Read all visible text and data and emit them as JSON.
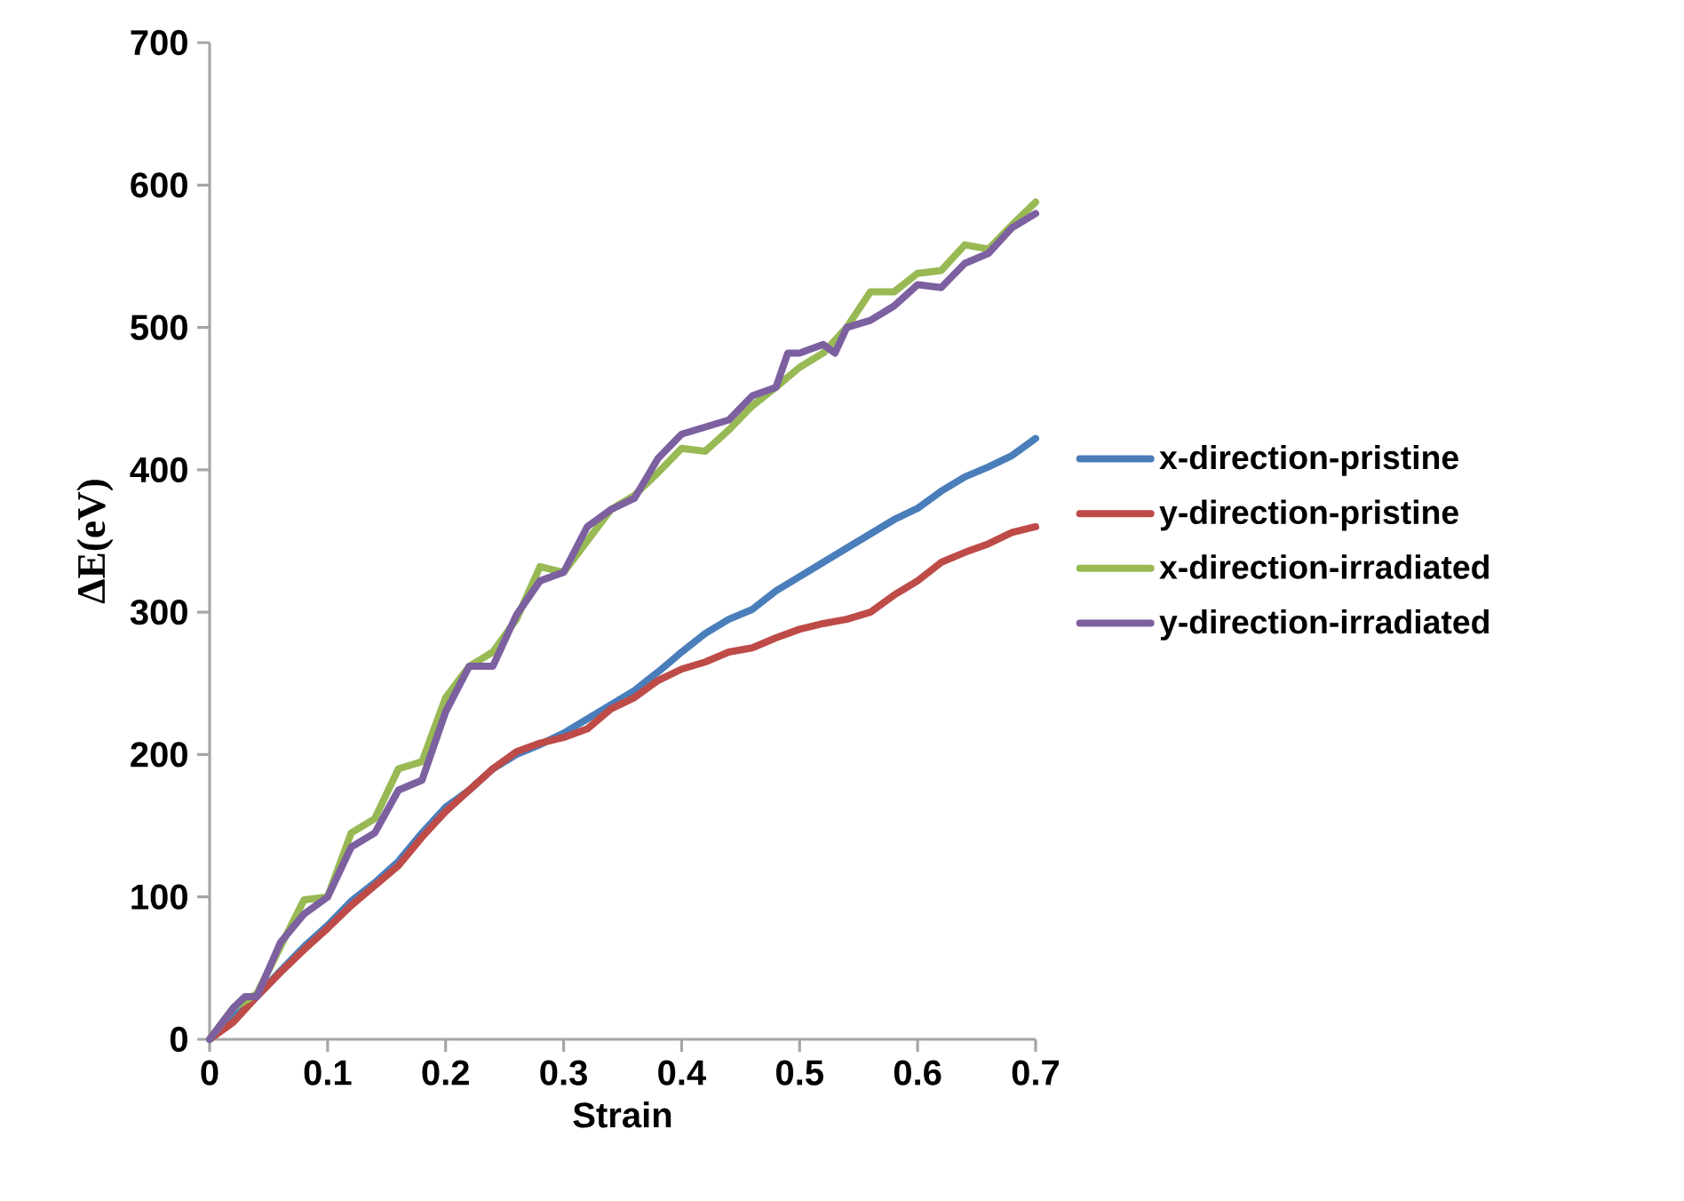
{
  "chart_data": {
    "type": "line",
    "xlabel": "Strain",
    "ylabel": "ΔE(eV)",
    "xlim": [
      0,
      0.7
    ],
    "ylim": [
      0,
      700
    ],
    "xticks": [
      0,
      0.1,
      0.2,
      0.3,
      0.4,
      0.5,
      0.6,
      0.7
    ],
    "yticks": [
      0,
      100,
      200,
      300,
      400,
      500,
      600,
      700
    ],
    "grid": false,
    "legend": "right",
    "marker": "none",
    "line_style": "solid",
    "series": [
      {
        "name": "x-direction-pristine",
        "color": "#4a7ebb",
        "x": [
          0,
          0.02,
          0.04,
          0.06,
          0.08,
          0.1,
          0.12,
          0.14,
          0.16,
          0.18,
          0.2,
          0.22,
          0.24,
          0.26,
          0.28,
          0.3,
          0.32,
          0.34,
          0.36,
          0.38,
          0.4,
          0.42,
          0.44,
          0.46,
          0.48,
          0.5,
          0.52,
          0.54,
          0.56,
          0.58,
          0.6,
          0.62,
          0.64,
          0.66,
          0.68,
          0.7
        ],
        "values": [
          0,
          15,
          30,
          48,
          65,
          80,
          97,
          110,
          125,
          145,
          163,
          175,
          190,
          200,
          207,
          215,
          225,
          235,
          245,
          258,
          272,
          285,
          295,
          302,
          315,
          325,
          335,
          345,
          355,
          365,
          373,
          385,
          395,
          402,
          410,
          422
        ]
      },
      {
        "name": "y-direction-pristine",
        "color": "#be4b48",
        "x": [
          0,
          0.02,
          0.04,
          0.06,
          0.08,
          0.1,
          0.12,
          0.14,
          0.16,
          0.18,
          0.2,
          0.22,
          0.24,
          0.26,
          0.28,
          0.3,
          0.32,
          0.34,
          0.36,
          0.38,
          0.4,
          0.42,
          0.44,
          0.46,
          0.48,
          0.5,
          0.52,
          0.54,
          0.56,
          0.58,
          0.6,
          0.62,
          0.64,
          0.66,
          0.68,
          0.7
        ],
        "values": [
          0,
          12,
          30,
          47,
          63,
          78,
          94,
          108,
          122,
          142,
          160,
          175,
          190,
          202,
          208,
          212,
          218,
          232,
          240,
          252,
          260,
          265,
          272,
          275,
          282,
          288,
          292,
          295,
          300,
          312,
          322,
          335,
          342,
          348,
          356,
          360
        ]
      },
      {
        "name": "x-direction-irradiated",
        "color": "#98b954",
        "x": [
          0,
          0.02,
          0.04,
          0.06,
          0.08,
          0.1,
          0.12,
          0.14,
          0.16,
          0.18,
          0.2,
          0.22,
          0.24,
          0.26,
          0.28,
          0.3,
          0.32,
          0.34,
          0.36,
          0.38,
          0.4,
          0.42,
          0.44,
          0.46,
          0.48,
          0.5,
          0.52,
          0.54,
          0.56,
          0.58,
          0.6,
          0.62,
          0.64,
          0.66,
          0.68,
          0.7
        ],
        "values": [
          0,
          22,
          32,
          65,
          98,
          100,
          145,
          155,
          190,
          195,
          240,
          262,
          272,
          295,
          332,
          328,
          350,
          372,
          382,
          398,
          415,
          413,
          428,
          445,
          458,
          472,
          482,
          500,
          525,
          525,
          538,
          540,
          558,
          555,
          572,
          588
        ]
      },
      {
        "name": "y-direction-irradiated",
        "color": "#7d60a0",
        "x": [
          0,
          0.02,
          0.03,
          0.04,
          0.06,
          0.08,
          0.1,
          0.12,
          0.14,
          0.16,
          0.18,
          0.2,
          0.22,
          0.24,
          0.26,
          0.28,
          0.3,
          0.32,
          0.34,
          0.36,
          0.38,
          0.4,
          0.42,
          0.44,
          0.46,
          0.48,
          0.49,
          0.5,
          0.52,
          0.53,
          0.54,
          0.56,
          0.58,
          0.6,
          0.62,
          0.64,
          0.66,
          0.68,
          0.7
        ],
        "values": [
          0,
          22,
          30,
          30,
          68,
          88,
          100,
          135,
          145,
          175,
          182,
          230,
          262,
          262,
          298,
          322,
          328,
          360,
          372,
          380,
          408,
          425,
          430,
          435,
          452,
          458,
          482,
          482,
          488,
          482,
          500,
          505,
          515,
          530,
          528,
          545,
          552,
          570,
          580
        ]
      }
    ]
  }
}
